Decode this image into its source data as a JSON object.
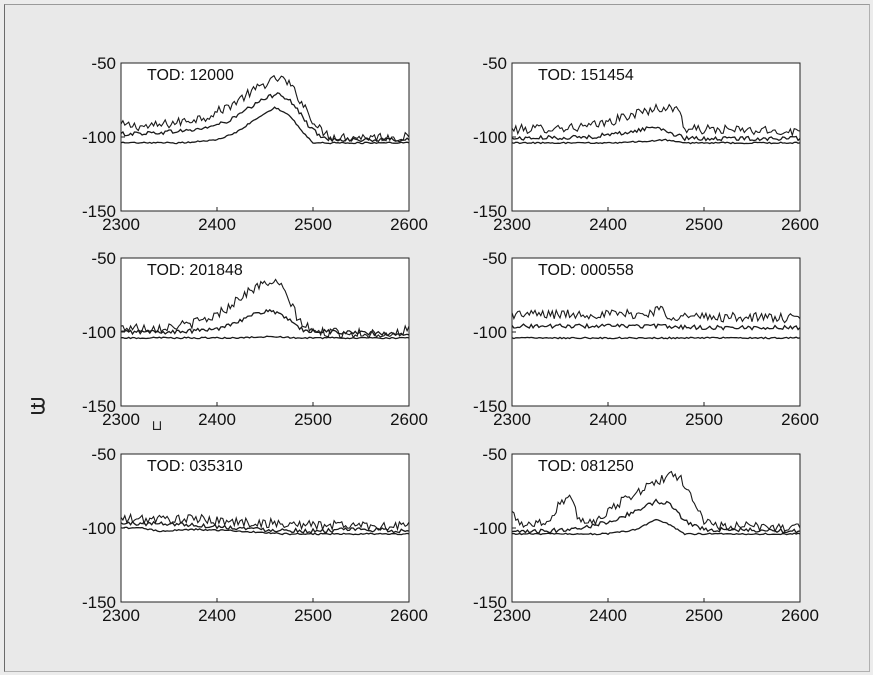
{
  "chart_data": [
    {
      "type": "line",
      "title": "TOD: 12000",
      "xlabel": "",
      "ylabel": "",
      "xlim": [
        2300,
        2600
      ],
      "ylim": [
        -150,
        -50
      ],
      "xticks": [
        "2300",
        "2400",
        "2500",
        "2600"
      ],
      "yticks": [
        "-50",
        "-100",
        "-150"
      ],
      "grid": false,
      "series": [
        {
          "values": [
            [
              2300,
              -92
            ],
            [
              2330,
              -93
            ],
            [
              2360,
              -90
            ],
            [
              2390,
              -86
            ],
            [
              2410,
              -80
            ],
            [
              2430,
              -72
            ],
            [
              2450,
              -64
            ],
            [
              2465,
              -60
            ],
            [
              2475,
              -64
            ],
            [
              2490,
              -78
            ],
            [
              2505,
              -94
            ],
            [
              2520,
              -100
            ],
            [
              2560,
              -100
            ],
            [
              2600,
              -100
            ]
          ]
        },
        {
          "values": [
            [
              2300,
              -98
            ],
            [
              2340,
              -97
            ],
            [
              2380,
              -95
            ],
            [
              2410,
              -90
            ],
            [
              2430,
              -82
            ],
            [
              2450,
              -74
            ],
            [
              2465,
              -70
            ],
            [
              2480,
              -78
            ],
            [
              2495,
              -92
            ],
            [
              2510,
              -101
            ],
            [
              2550,
              -102
            ],
            [
              2600,
              -102
            ]
          ]
        },
        {
          "values": [
            [
              2300,
              -104
            ],
            [
              2360,
              -104
            ],
            [
              2400,
              -102
            ],
            [
              2420,
              -97
            ],
            [
              2440,
              -88
            ],
            [
              2460,
              -80
            ],
            [
              2475,
              -85
            ],
            [
              2490,
              -97
            ],
            [
              2500,
              -104
            ],
            [
              2600,
              -104
            ]
          ]
        }
      ]
    },
    {
      "type": "line",
      "title": "TOD: 151454",
      "xlabel": "",
      "ylabel": "",
      "xlim": [
        2300,
        2600
      ],
      "ylim": [
        -150,
        -50
      ],
      "xticks": [
        "2300",
        "2400",
        "2500",
        "2600"
      ],
      "yticks": [
        "-50",
        "-100",
        "-150"
      ],
      "grid": false,
      "series": [
        {
          "values": [
            [
              2300,
              -95
            ],
            [
              2340,
              -94
            ],
            [
              2380,
              -93
            ],
            [
              2400,
              -90
            ],
            [
              2420,
              -86
            ],
            [
              2440,
              -82
            ],
            [
              2460,
              -80
            ],
            [
              2475,
              -82
            ],
            [
              2480,
              -95
            ],
            [
              2520,
              -95
            ],
            [
              2560,
              -96
            ],
            [
              2600,
              -96
            ]
          ]
        },
        {
          "values": [
            [
              2300,
              -101
            ],
            [
              2380,
              -100
            ],
            [
              2420,
              -97
            ],
            [
              2450,
              -93
            ],
            [
              2465,
              -97
            ],
            [
              2480,
              -101
            ],
            [
              2600,
              -101
            ]
          ]
        },
        {
          "values": [
            [
              2300,
              -104
            ],
            [
              2400,
              -104
            ],
            [
              2440,
              -103
            ],
            [
              2460,
              -102
            ],
            [
              2480,
              -104
            ],
            [
              2600,
              -104
            ]
          ]
        }
      ]
    },
    {
      "type": "line",
      "title": "TOD: 201848",
      "xlabel": "",
      "ylabel": "",
      "xlim": [
        2300,
        2600
      ],
      "ylim": [
        -150,
        -50
      ],
      "xticks": [
        "2300",
        "2400",
        "2500",
        "2600"
      ],
      "yticks": [
        "-50",
        "-100",
        "-150"
      ],
      "grid": false,
      "series": [
        {
          "values": [
            [
              2300,
              -97
            ],
            [
              2340,
              -97
            ],
            [
              2370,
              -95
            ],
            [
              2395,
              -90
            ],
            [
              2410,
              -84
            ],
            [
              2425,
              -76
            ],
            [
              2440,
              -70
            ],
            [
              2455,
              -66
            ],
            [
              2465,
              -68
            ],
            [
              2475,
              -78
            ],
            [
              2485,
              -92
            ],
            [
              2500,
              -100
            ],
            [
              2550,
              -101
            ],
            [
              2590,
              -101
            ],
            [
              2600,
              -96
            ]
          ]
        },
        {
          "values": [
            [
              2300,
              -100
            ],
            [
              2360,
              -100
            ],
            [
              2400,
              -98
            ],
            [
              2420,
              -93
            ],
            [
              2440,
              -88
            ],
            [
              2455,
              -85
            ],
            [
              2470,
              -90
            ],
            [
              2490,
              -99
            ],
            [
              2600,
              -102
            ]
          ]
        },
        {
          "values": [
            [
              2300,
              -104
            ],
            [
              2420,
              -104
            ],
            [
              2460,
              -103
            ],
            [
              2480,
              -104
            ],
            [
              2600,
              -104
            ]
          ]
        }
      ]
    },
    {
      "type": "line",
      "title": "TOD: 000558",
      "xlabel": "",
      "ylabel": "",
      "xlim": [
        2300,
        2600
      ],
      "ylim": [
        -150,
        -50
      ],
      "xticks": [
        "2300",
        "2400",
        "2500",
        "2600"
      ],
      "yticks": [
        "-50",
        "-100",
        "-150"
      ],
      "grid": false,
      "series": [
        {
          "values": [
            [
              2300,
              -88
            ],
            [
              2350,
              -88
            ],
            [
              2400,
              -88
            ],
            [
              2440,
              -88
            ],
            [
              2455,
              -84
            ],
            [
              2462,
              -89
            ],
            [
              2500,
              -90
            ],
            [
              2550,
              -90
            ],
            [
              2600,
              -91
            ]
          ]
        },
        {
          "values": [
            [
              2300,
              -96
            ],
            [
              2400,
              -96
            ],
            [
              2450,
              -96
            ],
            [
              2500,
              -97
            ],
            [
              2600,
              -97
            ]
          ]
        },
        {
          "values": [
            [
              2300,
              -104
            ],
            [
              2400,
              -104
            ],
            [
              2500,
              -104
            ],
            [
              2600,
              -104
            ]
          ]
        }
      ]
    },
    {
      "type": "line",
      "title": "TOD: 035310",
      "xlabel": "",
      "ylabel": "",
      "xlim": [
        2300,
        2600
      ],
      "ylim": [
        -150,
        -50
      ],
      "xticks": [
        "2300",
        "2400",
        "2500",
        "2600"
      ],
      "yticks": [
        "-50",
        "-100",
        "-150"
      ],
      "grid": false,
      "series": [
        {
          "values": [
            [
              2300,
              -94
            ],
            [
              2340,
              -94
            ],
            [
              2380,
              -94
            ],
            [
              2420,
              -96
            ],
            [
              2460,
              -97
            ],
            [
              2500,
              -98
            ],
            [
              2550,
              -98
            ],
            [
              2590,
              -99
            ],
            [
              2600,
              -96
            ]
          ]
        },
        {
          "values": [
            [
              2300,
              -97
            ],
            [
              2350,
              -97
            ],
            [
              2400,
              -99
            ],
            [
              2450,
              -101
            ],
            [
              2500,
              -102
            ],
            [
              2550,
              -101
            ],
            [
              2600,
              -102
            ]
          ]
        },
        {
          "values": [
            [
              2300,
              -100
            ],
            [
              2320,
              -100
            ],
            [
              2340,
              -102
            ],
            [
              2380,
              -101
            ],
            [
              2420,
              -102
            ],
            [
              2470,
              -104
            ],
            [
              2600,
              -104
            ]
          ]
        }
      ]
    },
    {
      "type": "line",
      "title": "TOD: 081250",
      "xlabel": "",
      "ylabel": "",
      "xlim": [
        2300,
        2600
      ],
      "ylim": [
        -150,
        -50
      ],
      "xticks": [
        "2300",
        "2400",
        "2500",
        "2600"
      ],
      "yticks": [
        "-50",
        "-100",
        "-150"
      ],
      "grid": false,
      "series": [
        {
          "values": [
            [
              2300,
              -90
            ],
            [
              2310,
              -97
            ],
            [
              2325,
              -97
            ],
            [
              2340,
              -95
            ],
            [
              2350,
              -82
            ],
            [
              2360,
              -80
            ],
            [
              2370,
              -94
            ],
            [
              2385,
              -96
            ],
            [
              2400,
              -88
            ],
            [
              2420,
              -80
            ],
            [
              2440,
              -72
            ],
            [
              2460,
              -66
            ],
            [
              2470,
              -64
            ],
            [
              2480,
              -70
            ],
            [
              2490,
              -82
            ],
            [
              2500,
              -96
            ],
            [
              2520,
              -99
            ],
            [
              2560,
              -99
            ],
            [
              2600,
              -100
            ]
          ]
        },
        {
          "values": [
            [
              2300,
              -103
            ],
            [
              2340,
              -102
            ],
            [
              2380,
              -99
            ],
            [
              2410,
              -94
            ],
            [
              2430,
              -88
            ],
            [
              2450,
              -82
            ],
            [
              2465,
              -84
            ],
            [
              2480,
              -95
            ],
            [
              2500,
              -101
            ],
            [
              2600,
              -102
            ]
          ]
        },
        {
          "values": [
            [
              2300,
              -104
            ],
            [
              2400,
              -104
            ],
            [
              2430,
              -101
            ],
            [
              2450,
              -94
            ],
            [
              2465,
              -98
            ],
            [
              2480,
              -104
            ],
            [
              2600,
              -104
            ]
          ]
        }
      ]
    }
  ],
  "margin_marks": {
    "left_glyph": "ᗲ",
    "tick_glyph": "⊔"
  },
  "colors": {
    "background": "#e9e9e9",
    "axes": "#ffffff",
    "line": "#1a1a1a"
  }
}
